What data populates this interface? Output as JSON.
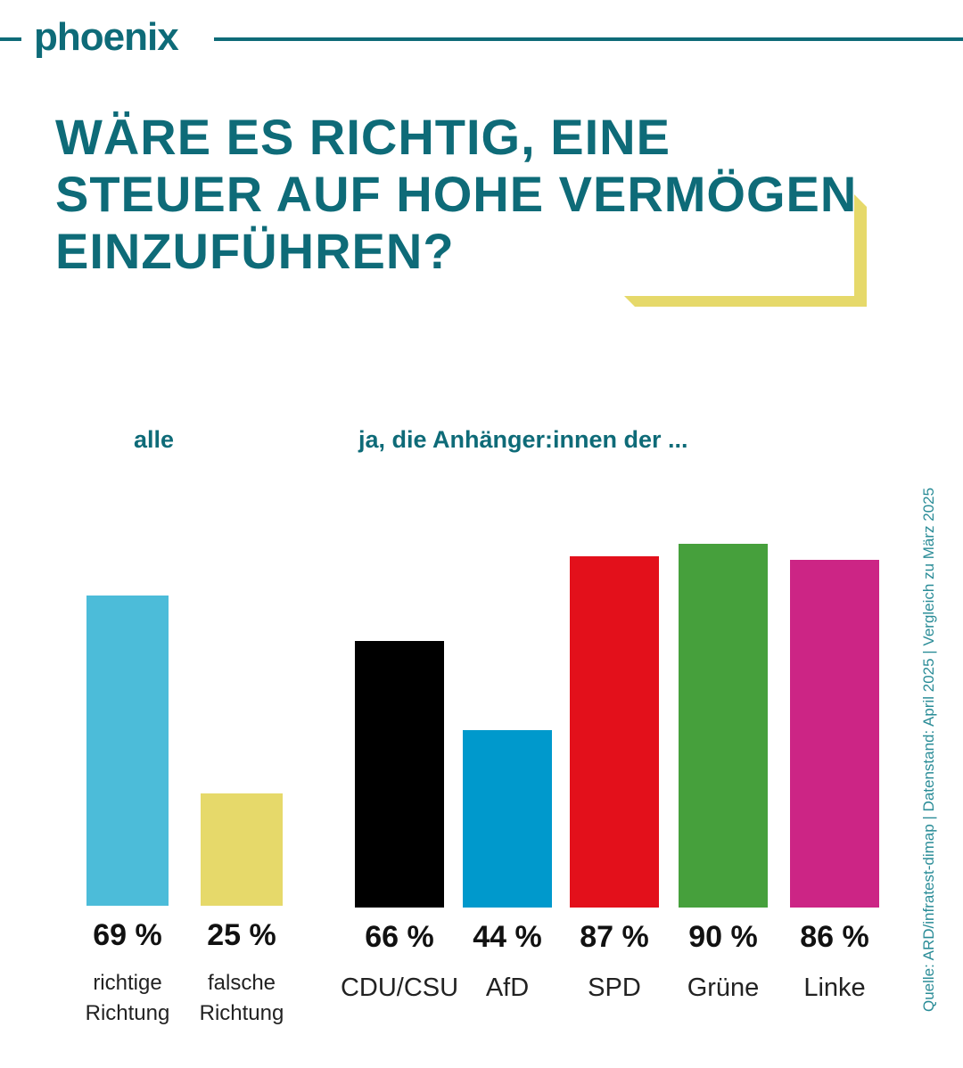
{
  "header": {
    "logo_text": "phoenix",
    "brand_color": "#0e6b78"
  },
  "title": "WÄRE ES RICHTIG, EINE STEUER AUF HOHE VERMÖGEN EINZUFÜHREN?",
  "accent_color": "#e6d96a",
  "chart_data": [
    {
      "type": "bar",
      "group_label": "alle",
      "categories": [
        "richtige Richtung",
        "falsche Richtung"
      ],
      "values": [
        69,
        25
      ],
      "value_labels": [
        "69 %",
        "25 %"
      ],
      "colors": [
        "#4cbcd9",
        "#e6d96a"
      ],
      "ylim": [
        0,
        100
      ]
    },
    {
      "type": "bar",
      "group_label": "ja, die Anhänger:innen der ...",
      "categories": [
        "CDU/CSU",
        "AfD",
        "SPD",
        "Grüne",
        "Linke"
      ],
      "values": [
        66,
        44,
        87,
        90,
        86
      ],
      "value_labels": [
        "66 %",
        "44 %",
        "87 %",
        "90 %",
        "86 %"
      ],
      "colors": [
        "#000000",
        "#0099cc",
        "#e3101b",
        "#46a03c",
        "#cc2585"
      ],
      "ylim": [
        0,
        100
      ]
    }
  ],
  "source": "Quelle:  ARD/infratest-dimap | Datenstand: April 2025 | Vergleich zu März 2025"
}
